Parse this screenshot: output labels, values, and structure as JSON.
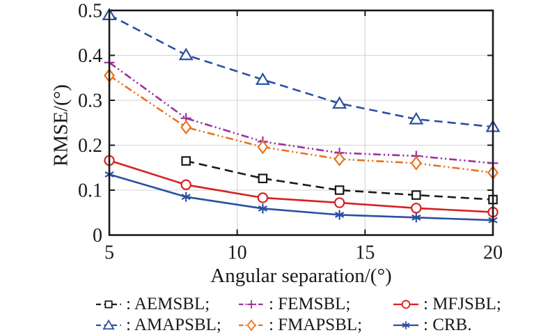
{
  "figure": {
    "background": "#ffffff",
    "axis_color": "#1a1a1a",
    "grid_color": "#d9d9d9"
  },
  "chart_data": {
    "type": "line",
    "title": "",
    "xlabel": "Angular separation/(°)",
    "ylabel": "RMSE/(°)",
    "xlim": [
      5,
      20
    ],
    "ylim": [
      0,
      0.5
    ],
    "xticks": {
      "values": [
        5,
        10,
        15,
        20
      ],
      "labels": [
        "5",
        "10",
        "15",
        "20"
      ]
    },
    "yticks": {
      "values": [
        0,
        0.1,
        0.2,
        0.3,
        0.4,
        0.5
      ],
      "labels": [
        "0",
        "0.1",
        "0.2",
        "0.3",
        "0.4",
        "0.5"
      ]
    },
    "grid": {
      "x": [
        10,
        15
      ],
      "y": [
        0.1,
        0.2,
        0.3,
        0.4
      ],
      "color": "#d9d9d9",
      "on": true
    },
    "axis_color": "#1a1a1a",
    "legend_position": "below-two-rows",
    "series": [
      {
        "name": "AMAPSBL",
        "color": "#2a4fa2",
        "line": "dashed",
        "marker": "triangle",
        "x": [
          5,
          8,
          11,
          14,
          17,
          20
        ],
        "y": [
          0.49,
          0.401,
          0.346,
          0.293,
          0.258,
          0.241
        ]
      },
      {
        "name": "FEMSBL",
        "color": "#9c3299",
        "line": "dashdot",
        "marker": "plus",
        "x": [
          5,
          8,
          11,
          14,
          17,
          20
        ],
        "y": [
          0.384,
          0.26,
          0.208,
          0.183,
          0.176,
          0.16
        ]
      },
      {
        "name": "FMAPSBL",
        "color": "#e8741e",
        "line": "dashdot",
        "marker": "diamond",
        "x": [
          5,
          8,
          11,
          14,
          17,
          20
        ],
        "y": [
          0.355,
          0.24,
          0.196,
          0.169,
          0.16,
          0.139
        ]
      },
      {
        "name": "AEMSBL",
        "color": "#1a1a1a",
        "line": "dashed",
        "marker": "square",
        "x": [
          8,
          11,
          14,
          17,
          20
        ],
        "y": [
          0.165,
          0.126,
          0.1,
          0.089,
          0.079
        ]
      },
      {
        "name": "MFJSBL",
        "color": "#d62120",
        "line": "solid",
        "marker": "circle",
        "x": [
          5,
          8,
          11,
          14,
          17,
          20
        ],
        "y": [
          0.166,
          0.112,
          0.083,
          0.072,
          0.06,
          0.051
        ]
      },
      {
        "name": "CRB",
        "color": "#2a4fa2",
        "line": "solid",
        "marker": "asterisk",
        "x": [
          5,
          8,
          11,
          14,
          17,
          20
        ],
        "y": [
          0.135,
          0.085,
          0.059,
          0.045,
          0.039,
          0.033
        ]
      }
    ],
    "legend": {
      "items": [
        {
          "series": "AEMSBL",
          "label": ": AEMSBL;"
        },
        {
          "series": "FEMSBL",
          "label": ": FEMSBL;"
        },
        {
          "series": "MFJSBL",
          "label": ": MFJSBL;"
        },
        {
          "series": "AMAPSBL",
          "label": ": AMAPSBL;"
        },
        {
          "series": "FMAPSBL",
          "label": ": FMAPSBL;"
        },
        {
          "series": "CRB",
          "label": ": CRB."
        }
      ]
    }
  }
}
